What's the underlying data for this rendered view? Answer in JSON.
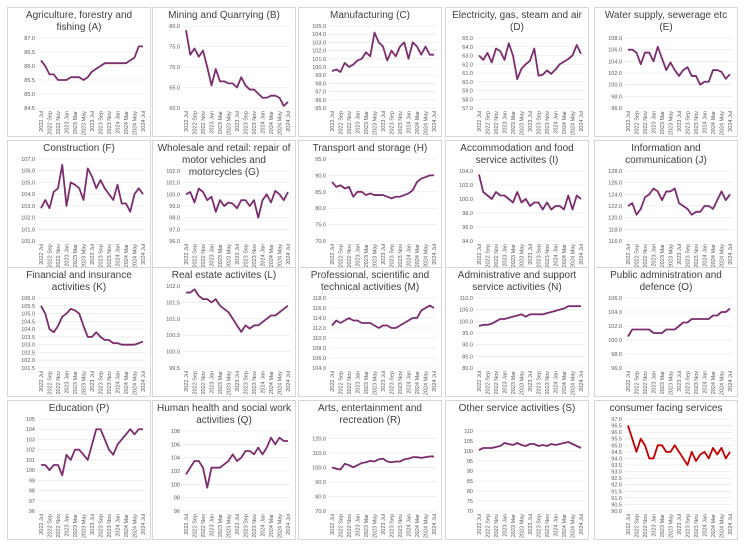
{
  "colors": {
    "main": "#7b2d6e",
    "red": "#c00000"
  },
  "x_labels": [
    "2022 Jul",
    "2022 Sep",
    "2022 Nov",
    "2023 Jan",
    "2023 Mar",
    "2023 May",
    "2023 Jul",
    "2023 Sep",
    "2023 Nov",
    "2024 Jan",
    "2024 Mar",
    "2024 May",
    "2024 Jul"
  ],
  "chart_data": [
    {
      "type": "line",
      "title": "Agriculture, forestry and fishing (A)",
      "color": "main",
      "ylim": [
        84.5,
        87.0
      ],
      "yticks": [
        "84.5",
        "85.0",
        "85.5",
        "86.0",
        "86.5",
        "87.0"
      ],
      "values": [
        86.2,
        86.0,
        85.7,
        85.7,
        85.5,
        85.5,
        85.5,
        85.6,
        85.6,
        85.6,
        85.5,
        85.6,
        85.8,
        85.9,
        86.0,
        86.1,
        86.1,
        86.1,
        86.1,
        86.1,
        86.1,
        86.2,
        86.3,
        86.7,
        86.7
      ]
    },
    {
      "type": "line",
      "title": "Mining and Quarrying (B)",
      "color": "main",
      "ylim": [
        60.0,
        80.0
      ],
      "yticks": [
        "60.0",
        "65.0",
        "70.0",
        "75.0",
        "80.0"
      ],
      "values": [
        79.0,
        73.0,
        74.5,
        72.5,
        74.0,
        70.0,
        65.5,
        69.5,
        66.5,
        66.5,
        66.0,
        66.0,
        65.0,
        67.5,
        65.5,
        64.5,
        64.5,
        63.5,
        62.5,
        62.5,
        63.0,
        63.0,
        62.5,
        60.5,
        61.5
      ]
    },
    {
      "type": "line",
      "title": "Manufacturing (C)",
      "color": "main",
      "ylim": [
        95.0,
        105.0
      ],
      "yticks": [
        "95.0",
        "96.0",
        "97.0",
        "98.0",
        "99.0",
        "100.0",
        "101.0",
        "102.0",
        "103.0",
        "104.0",
        "105.0"
      ],
      "values": [
        99.5,
        99.7,
        99.4,
        100.5,
        100.0,
        100.3,
        100.8,
        101.0,
        101.8,
        101.3,
        104.2,
        103.0,
        102.5,
        100.8,
        102.0,
        101.3,
        102.5,
        103.0,
        101.0,
        103.0,
        102.5,
        101.5,
        102.5,
        101.5,
        101.5
      ]
    },
    {
      "type": "line",
      "title": "Electricity, gas, steam and air (D)",
      "color": "main",
      "ylim": [
        57.0,
        65.0
      ],
      "yticks": [
        "57.0",
        "58.0",
        "59.0",
        "60.0",
        "61.0",
        "62.0",
        "63.0",
        "64.0",
        "65.0"
      ],
      "values": [
        63.0,
        62.5,
        63.3,
        62.2,
        63.8,
        63.5,
        62.5,
        64.4,
        63.0,
        60.3,
        61.5,
        62.0,
        62.4,
        63.8,
        60.7,
        60.8,
        61.3,
        60.9,
        61.4,
        62.0,
        62.3,
        62.6,
        63.0,
        64.2,
        63.2
      ]
    },
    {
      "type": "line",
      "title": "Water supply, sewerage etc (E)",
      "color": "main",
      "ylim": [
        96.0,
        108.0
      ],
      "yticks": [
        "96.0",
        "98.0",
        "100.0",
        "102.0",
        "104.0",
        "106.0",
        "108.0"
      ],
      "values": [
        106.0,
        106.0,
        105.5,
        103.5,
        105.5,
        105.5,
        104.0,
        106.5,
        104.5,
        102.5,
        103.8,
        102.5,
        101.5,
        102.5,
        103.0,
        101.5,
        101.5,
        100.0,
        100.5,
        100.5,
        102.5,
        102.5,
        102.2,
        101.0,
        101.8
      ]
    },
    {
      "type": "line",
      "title": "Construction (F)",
      "color": "main",
      "ylim": [
        100.0,
        107.0
      ],
      "yticks": [
        "100.0",
        "101.0",
        "102.0",
        "103.0",
        "104.0",
        "105.0",
        "106.0",
        "107.0"
      ],
      "values": [
        102.8,
        103.5,
        102.8,
        104.2,
        104.5,
        106.5,
        103.0,
        105.0,
        104.8,
        104.5,
        103.5,
        106.2,
        105.5,
        104.5,
        105.2,
        104.5,
        104.0,
        103.5,
        104.8,
        103.2,
        103.2,
        102.5,
        104.0,
        104.5,
        104.0
      ]
    },
    {
      "type": "line",
      "title": "Wholesale and retail: repair of motor vehicles and motorcycles (G)",
      "color": "main",
      "ylim": [
        96.0,
        102.0
      ],
      "yticks": [
        "96.0",
        "97.0",
        "98.0",
        "99.0",
        "100.0",
        "101.0",
        "102.0"
      ],
      "values": [
        100.0,
        100.2,
        99.3,
        100.5,
        100.2,
        99.5,
        99.8,
        98.5,
        99.5,
        99.0,
        99.3,
        99.2,
        98.8,
        99.5,
        99.5,
        99.0,
        99.5,
        98.0,
        99.5,
        100.0,
        99.3,
        100.3,
        100.0,
        99.5,
        100.2
      ]
    },
    {
      "type": "line",
      "title": "Transport and storage (H)",
      "color": "main",
      "ylim": [
        70.0,
        95.0
      ],
      "yticks": [
        "70.0",
        "75.0",
        "80.0",
        "85.0",
        "90.0",
        "95.0"
      ],
      "values": [
        88.0,
        86.5,
        87.0,
        86.0,
        86.5,
        83.5,
        85.0,
        85.0,
        84.0,
        84.5,
        84.0,
        84.0,
        84.0,
        83.5,
        83.0,
        83.5,
        83.5,
        84.0,
        84.5,
        85.5,
        88.0,
        89.0,
        89.5,
        90.0,
        90.0
      ]
    },
    {
      "type": "line",
      "title": "Accommodation and food service activites (I)",
      "color": "main",
      "ylim": [
        94.0,
        104.0
      ],
      "yticks": [
        "94.0",
        "96.0",
        "98.0",
        "100.0",
        "102.0",
        "104.0"
      ],
      "values": [
        103.5,
        101.0,
        100.5,
        100.0,
        101.0,
        100.5,
        100.5,
        100.0,
        99.5,
        101.0,
        99.5,
        100.0,
        99.0,
        99.5,
        99.5,
        98.5,
        99.5,
        98.5,
        99.0,
        99.0,
        98.5,
        100.5,
        98.5,
        100.5,
        100.0
      ]
    },
    {
      "type": "line",
      "title": "Information and communication (J)",
      "color": "main",
      "ylim": [
        116.0,
        128.0
      ],
      "yticks": [
        "116.0",
        "118.0",
        "120.0",
        "122.0",
        "124.0",
        "126.0",
        "128.0"
      ],
      "values": [
        122.0,
        122.5,
        120.5,
        121.5,
        123.5,
        124.0,
        125.0,
        124.5,
        123.0,
        124.5,
        124.5,
        125.0,
        122.5,
        122.0,
        121.5,
        120.5,
        121.0,
        121.0,
        122.0,
        122.0,
        121.5,
        123.0,
        124.5,
        123.0,
        124.0
      ]
    },
    {
      "type": "line",
      "title": "Financial and insurance activities (K)",
      "color": "main",
      "ylim": [
        101.5,
        106.0
      ],
      "yticks": [
        "101.5",
        "102.0",
        "102.5",
        "103.0",
        "103.5",
        "104.0",
        "104.5",
        "105.0",
        "105.5",
        "106.0"
      ],
      "values": [
        105.5,
        105.0,
        104.0,
        103.8,
        104.2,
        104.8,
        105.0,
        105.3,
        105.2,
        105.0,
        104.2,
        103.5,
        103.5,
        103.8,
        103.5,
        103.3,
        103.3,
        103.1,
        103.1,
        103.0,
        103.0,
        103.0,
        103.0,
        103.1,
        103.2
      ]
    },
    {
      "type": "line",
      "title": "Real estate activites (L)",
      "color": "main",
      "ylim": [
        99.5,
        102.0
      ],
      "yticks": [
        "99.5",
        "100.0",
        "100.5",
        "101.0",
        "101.5",
        "102.0"
      ],
      "values": [
        101.8,
        101.8,
        101.9,
        101.7,
        101.6,
        101.6,
        101.5,
        101.6,
        101.4,
        101.3,
        101.2,
        101.0,
        100.8,
        100.6,
        100.8,
        100.7,
        100.8,
        100.8,
        100.9,
        101.0,
        101.1,
        101.1,
        101.2,
        101.3,
        101.4
      ]
    },
    {
      "type": "line",
      "title": "Professional, scientific and technical activities (M)",
      "color": "main",
      "ylim": [
        104.0,
        118.0
      ],
      "yticks": [
        "104.0",
        "106.0",
        "108.0",
        "110.0",
        "112.0",
        "114.0",
        "116.0",
        "118.0"
      ],
      "values": [
        112.5,
        113.5,
        113.0,
        113.5,
        114.0,
        113.5,
        113.5,
        113.0,
        113.0,
        113.0,
        112.5,
        112.0,
        112.5,
        112.5,
        112.0,
        112.0,
        112.5,
        113.0,
        113.5,
        114.0,
        114.0,
        115.5,
        116.0,
        116.5,
        116.0
      ]
    },
    {
      "type": "line",
      "title": "Administrative and support service activities (N)",
      "color": "main",
      "ylim": [
        80.0,
        110.0
      ],
      "yticks": [
        "80.0",
        "85.0",
        "90.0",
        "95.0",
        "100.0",
        "105.0",
        "110.0"
      ],
      "values": [
        98.0,
        98.5,
        98.5,
        99.0,
        100.0,
        101.0,
        101.0,
        101.5,
        102.0,
        102.5,
        103.0,
        102.0,
        103.0,
        103.0,
        103.0,
        103.0,
        103.5,
        104.0,
        104.5,
        105.0,
        105.5,
        106.5,
        106.5,
        106.5,
        106.5
      ]
    },
    {
      "type": "line",
      "title": "Public administration and defence (O)",
      "color": "main",
      "ylim": [
        96.0,
        106.0
      ],
      "yticks": [
        "96.0",
        "98.0",
        "100.0",
        "102.0",
        "104.0",
        "106.0"
      ],
      "values": [
        100.5,
        101.5,
        101.5,
        101.5,
        101.5,
        101.5,
        101.0,
        101.0,
        101.0,
        101.5,
        101.5,
        101.5,
        102.0,
        102.5,
        102.5,
        103.0,
        103.0,
        103.0,
        103.0,
        103.0,
        103.5,
        103.5,
        104.0,
        104.0,
        104.5
      ]
    },
    {
      "type": "line",
      "title": "Education (P)",
      "color": "main",
      "ylim": [
        96,
        105
      ],
      "yticks": [
        "96",
        "97",
        "98",
        "99",
        "100",
        "101",
        "102",
        "103",
        "104",
        "105"
      ],
      "values": [
        100.5,
        100.5,
        100.0,
        100.5,
        100.5,
        99.5,
        101.5,
        101.0,
        102.0,
        102.0,
        101.5,
        101.0,
        102.5,
        104.0,
        104.0,
        103.0,
        102.0,
        101.5,
        102.5,
        103.0,
        103.5,
        104.0,
        103.5,
        104.0,
        104.0
      ]
    },
    {
      "type": "line",
      "title": "Human health and social work activities (Q)",
      "color": "main",
      "ylim": [
        96,
        108
      ],
      "yticks": [
        "96",
        "98",
        "100",
        "102",
        "104",
        "106",
        "108"
      ],
      "values": [
        101.5,
        102.5,
        103.5,
        103.5,
        102.5,
        99.5,
        102.5,
        102.5,
        102.5,
        103.0,
        103.5,
        104.5,
        103.5,
        104.0,
        105.0,
        105.0,
        104.5,
        105.5,
        104.5,
        105.5,
        107.0,
        106.0,
        107.0,
        106.5,
        106.5
      ]
    },
    {
      "type": "line",
      "title": "Arts, entertainment and recreation (R)",
      "color": "main",
      "ylim": [
        70.0,
        125.0
      ],
      "yticks": [
        "70.0",
        "80.0",
        "90.0",
        "100.0",
        "110.0",
        "120.0"
      ],
      "values": [
        100.0,
        99.0,
        98.5,
        102.5,
        101.5,
        100.0,
        101.5,
        103.0,
        103.5,
        104.5,
        104.0,
        105.5,
        106.0,
        104.0,
        103.5,
        104.0,
        104.0,
        105.5,
        106.0,
        107.0,
        107.0,
        106.5,
        107.0,
        107.5,
        107.5
      ]
    },
    {
      "type": "line",
      "title": "Other service activities (S)",
      "color": "main",
      "ylim": [
        70,
        110
      ],
      "yticks": [
        "70",
        "75",
        "80",
        "85",
        "90",
        "95",
        "100",
        "105",
        "110"
      ],
      "values": [
        100.5,
        101.5,
        101.5,
        101.5,
        102.0,
        102.5,
        104.0,
        103.5,
        103.0,
        104.0,
        103.0,
        102.5,
        103.5,
        103.5,
        102.5,
        103.0,
        102.5,
        103.5,
        103.0,
        103.5,
        104.0,
        104.5,
        103.5,
        102.5,
        101.5
      ]
    },
    {
      "type": "line",
      "title": "consumer facing services",
      "color": "red",
      "ylim": [
        90.0,
        97.0
      ],
      "yticks": [
        "90.0",
        "90.5",
        "91.0",
        "91.5",
        "92.0",
        "92.5",
        "93.0",
        "93.5",
        "94.0",
        "94.5",
        "95.0",
        "95.5",
        "96.0",
        "96.5",
        "97.0"
      ],
      "values": [
        96.5,
        95.5,
        94.5,
        95.5,
        95.0,
        94.0,
        94.0,
        95.0,
        95.0,
        94.5,
        94.5,
        95.0,
        94.5,
        94.0,
        93.5,
        94.5,
        93.8,
        94.3,
        94.5,
        94.0,
        94.8,
        94.3,
        94.8,
        94.0,
        94.5
      ]
    }
  ]
}
